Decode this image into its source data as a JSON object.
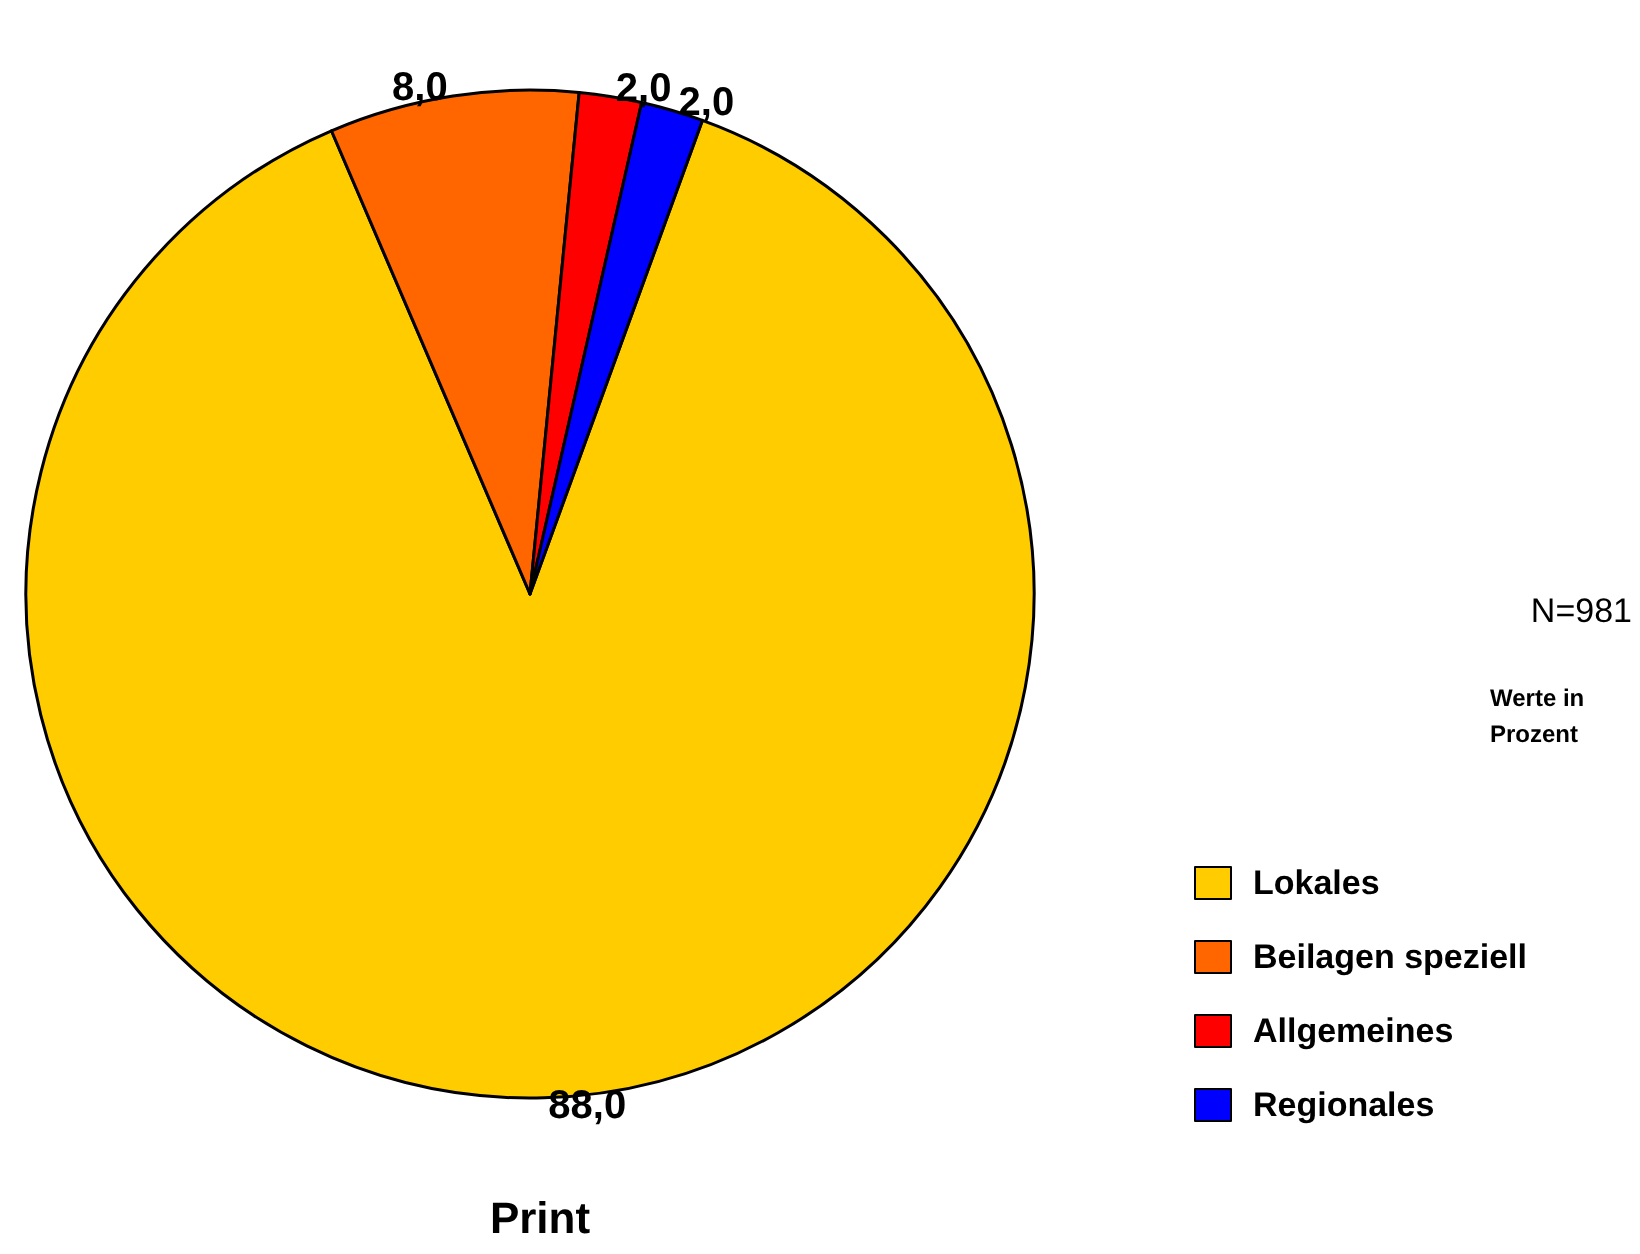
{
  "chart_data": {
    "type": "pie",
    "title": "Print",
    "categories": [
      "Lokales",
      "Beilagen speziell",
      "Allgemeines",
      "Regionales"
    ],
    "values": [
      88,
      8,
      2,
      2
    ],
    "value_labels": [
      "88,0",
      "8,0",
      "2,0",
      "2,0"
    ],
    "colors": [
      "#ffcc00",
      "#ff6600",
      "#ff0000",
      "#0000ff"
    ],
    "legend": "bottom right",
    "annotations": [
      "N=981",
      "Werte in Prozent"
    ]
  }
}
